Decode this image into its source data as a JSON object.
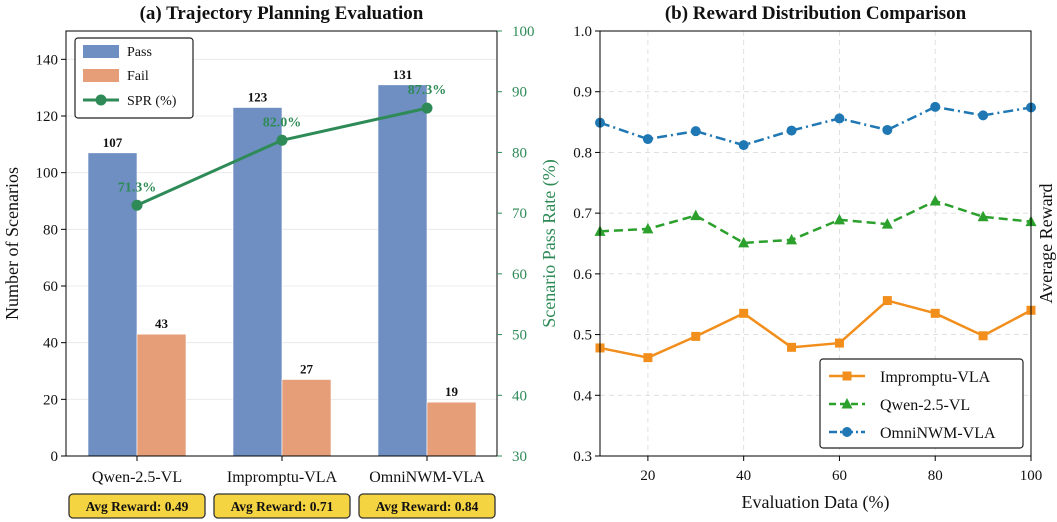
{
  "chart_data": [
    {
      "type": "bar",
      "title": "(a) Trajectory Planning Evaluation",
      "categories": [
        "Qwen-2.5-VL",
        "Impromptu-VLA",
        "OmniNWM-VLA"
      ],
      "series": [
        {
          "name": "Pass",
          "values": [
            107,
            123,
            131
          ],
          "color": "#6f8fc2"
        },
        {
          "name": "Fail",
          "values": [
            43,
            27,
            19
          ],
          "color": "#e59e78"
        }
      ],
      "bar_labels": {
        "pass": [
          "107",
          "123",
          "131"
        ],
        "fail": [
          "43",
          "27",
          "19"
        ]
      },
      "line_series": {
        "name": "SPR (%)",
        "values": [
          71.3,
          82.0,
          87.3
        ],
        "labels": [
          "71.3%",
          "82.0%",
          "87.3%"
        ],
        "color": "#2e8b57"
      },
      "ylabel": "Number of Scenarios",
      "ylim": [
        0,
        150
      ],
      "yticks": [
        "0",
        "20",
        "40",
        "60",
        "80",
        "100",
        "120",
        "140"
      ],
      "y2label": "Scenario Pass Rate (%)",
      "y2lim": [
        30,
        100
      ],
      "y2ticks": [
        "30",
        "40",
        "50",
        "60",
        "70",
        "80",
        "90",
        "100"
      ],
      "badges": [
        "Avg Reward: 0.49",
        "Avg Reward: 0.71",
        "Avg Reward: 0.84"
      ],
      "badge_color": "#f5d442",
      "legend_position": "top-left",
      "grid": "horizontal"
    },
    {
      "type": "line",
      "title": "(b) Reward Distribution Comparison",
      "x": [
        10,
        20,
        30,
        40,
        50,
        60,
        70,
        80,
        90,
        100
      ],
      "xlabel": "Evaluation Data (%)",
      "ylabel": "Average Reward",
      "xlim": [
        10,
        100
      ],
      "ylim": [
        0.3,
        1.0
      ],
      "xticks": [
        "20",
        "40",
        "60",
        "80",
        "100"
      ],
      "yticks": [
        "0.3",
        "0.4",
        "0.5",
        "0.6",
        "0.7",
        "0.8",
        "0.9",
        "1.0"
      ],
      "series": [
        {
          "name": "Impromptu-VLA",
          "values": [
            0.478,
            0.462,
            0.497,
            0.535,
            0.479,
            0.486,
            0.556,
            0.535,
            0.498,
            0.54
          ],
          "color": "#f28e1c",
          "style": "solid",
          "marker": "square"
        },
        {
          "name": "Qwen-2.5-VL",
          "values": [
            0.67,
            0.674,
            0.696,
            0.651,
            0.656,
            0.689,
            0.682,
            0.72,
            0.694,
            0.686
          ],
          "color": "#2ca02c",
          "style": "dashed",
          "marker": "triangle"
        },
        {
          "name": "OmniNWM-VLA",
          "values": [
            0.849,
            0.822,
            0.835,
            0.812,
            0.836,
            0.856,
            0.837,
            0.875,
            0.861,
            0.874
          ],
          "color": "#1f77b4",
          "style": "dashdot",
          "marker": "circle"
        }
      ],
      "legend_position": "bottom-right",
      "grid": "both"
    }
  ]
}
